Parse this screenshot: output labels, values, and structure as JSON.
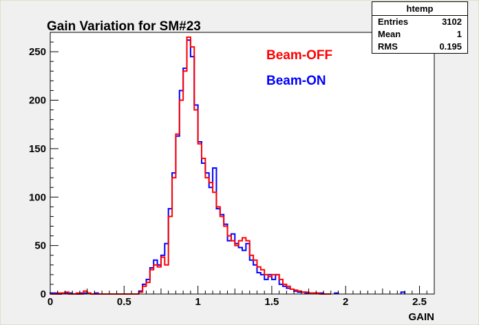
{
  "colors": {
    "frame_bg": "#f0f0f0",
    "plot_bg": "#ffffff",
    "beam_off": "#ff0000",
    "beam_on": "#0000ff",
    "axis": "#000000"
  },
  "chart_data": {
    "type": "histogram",
    "title": "Gain Variation for SM#23",
    "xlabel": "GAIN",
    "ylabel": "",
    "xlim": [
      0,
      2.6
    ],
    "ylim": [
      0,
      270
    ],
    "bin_width": 0.025,
    "x_major_ticks": [
      0,
      0.5,
      1,
      1.5,
      2,
      2.5
    ],
    "x_tick_labels": [
      "0",
      "0.5",
      "1",
      "1.5",
      "2",
      "2.5"
    ],
    "y_major_ticks": [
      0,
      50,
      100,
      150,
      200,
      250
    ],
    "y_tick_labels": [
      "0",
      "50",
      "100",
      "150",
      "200",
      "250"
    ],
    "legend_text": [
      "Beam-OFF",
      "Beam-ON"
    ],
    "legend_placement": "top-right",
    "series": [
      {
        "name": "Beam-OFF",
        "color": "#ff0000",
        "bin_edges_start": 0.6,
        "values": [
          2,
          8,
          12,
          25,
          30,
          28,
          38,
          30,
          80,
          120,
          165,
          200,
          230,
          265,
          255,
          190,
          155,
          140,
          120,
          115,
          105,
          90,
          80,
          70,
          60,
          55,
          50,
          55,
          58,
          55,
          40,
          35,
          28,
          25,
          20,
          18,
          20,
          20,
          15,
          10,
          8,
          5,
          4,
          3,
          2,
          2,
          1,
          1,
          1,
          0,
          0,
          0
        ]
      },
      {
        "name": "Beam-ON",
        "color": "#0000ff",
        "bin_edges_start": 0.6,
        "values": [
          3,
          10,
          15,
          27,
          35,
          30,
          40,
          52,
          88,
          125,
          163,
          210,
          233,
          262,
          245,
          195,
          157,
          135,
          125,
          110,
          130,
          88,
          82,
          72,
          55,
          62,
          52,
          48,
          45,
          52,
          35,
          30,
          22,
          20,
          15,
          20,
          15,
          20,
          10,
          8,
          6,
          5,
          3,
          2,
          2,
          1,
          1,
          1,
          1,
          1,
          0,
          0
        ]
      }
    ],
    "low_tail": {
      "beam_off": [
        0,
        0,
        1,
        1,
        2,
        0,
        0,
        1,
        0,
        3,
        1,
        0,
        0,
        0,
        0,
        0,
        0,
        0,
        0,
        0,
        0,
        0,
        0,
        0
      ],
      "beam_on": [
        1,
        1,
        0,
        1,
        1,
        1,
        0,
        0,
        1,
        1,
        1,
        0,
        1,
        0,
        0,
        0,
        0,
        0,
        0,
        0,
        0,
        0,
        0,
        0
      ],
      "start": 0.0
    },
    "high_tail": {
      "beam_on_bins": [
        1.925,
        2.375
      ],
      "beam_on_values": [
        1,
        2
      ]
    }
  },
  "stats": {
    "name": "htemp",
    "entries_label": "Entries",
    "entries_value": "3102",
    "mean_label": "Mean",
    "mean_value": "1",
    "rms_label": "RMS",
    "rms_value": "0.195"
  }
}
